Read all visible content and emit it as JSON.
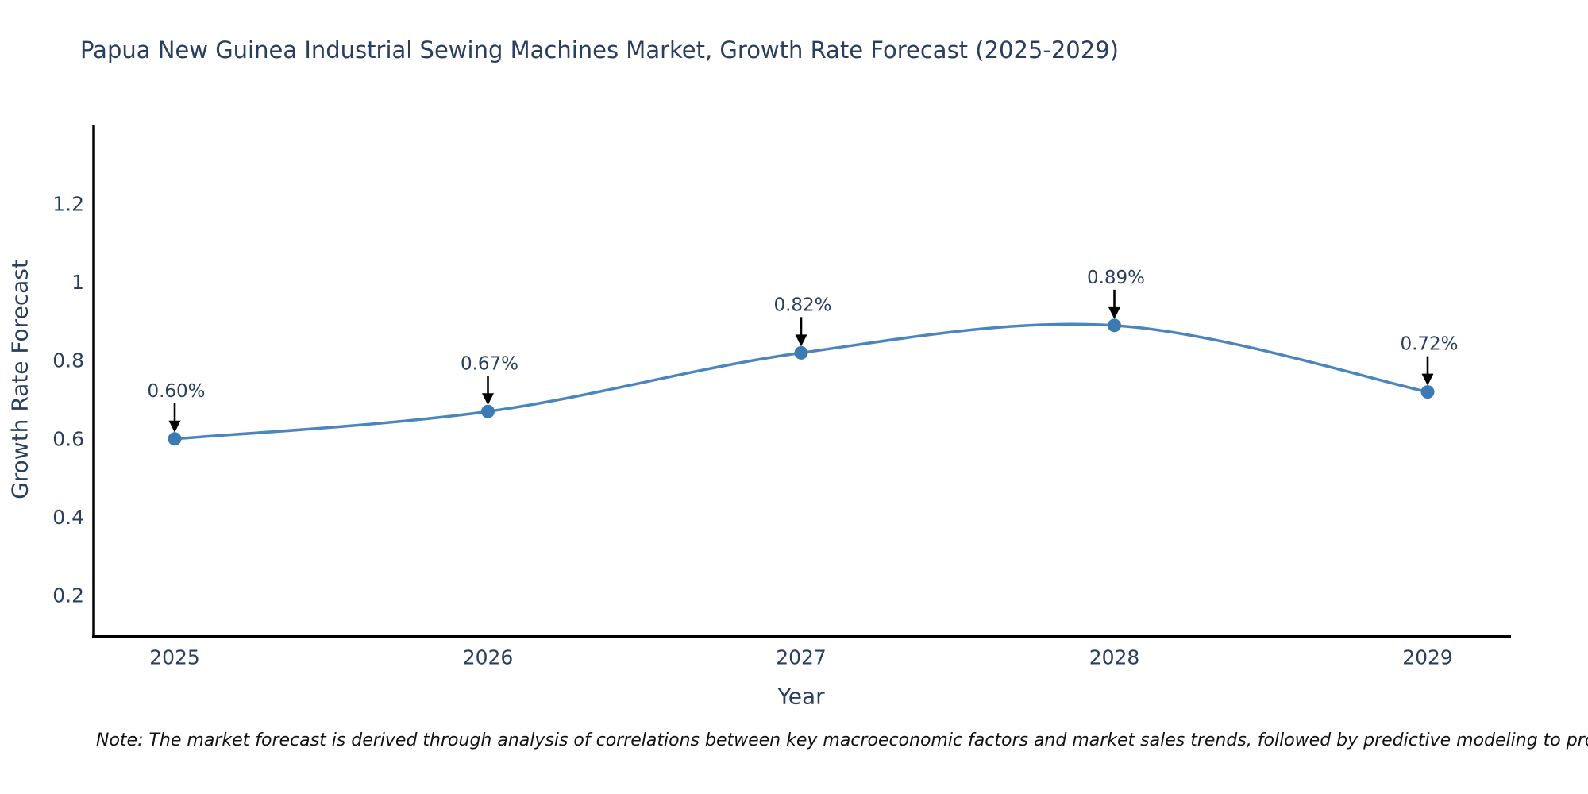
{
  "title": "Papua New Guinea Industrial Sewing Machines Market, Growth Rate Forecast (2025-2029)",
  "note": "Note: The market forecast is derived through analysis of correlations between key macroeconomic factors and market sales trends, followed by predictive modeling to project future sales",
  "chart_data": {
    "type": "line",
    "title": "Papua New Guinea Industrial Sewing Machines Market, Growth Rate Forecast (2025-2029)",
    "xlabel": "Year",
    "ylabel": "Growth Rate Forecast",
    "x": [
      2025,
      2026,
      2027,
      2028,
      2029
    ],
    "values": [
      0.6,
      0.67,
      0.82,
      0.89,
      0.72
    ],
    "point_labels": [
      "0.60%",
      "0.67%",
      "0.82%",
      "0.89%",
      "0.72%"
    ],
    "xticks": [
      {
        "value": 2025,
        "label": "2025"
      },
      {
        "value": 2026,
        "label": "2026"
      },
      {
        "value": 2027,
        "label": "2027"
      },
      {
        "value": 2028,
        "label": "2028"
      },
      {
        "value": 2029,
        "label": "2029"
      }
    ],
    "yticks": [
      {
        "value": 0.2,
        "label": "0.2"
      },
      {
        "value": 0.4,
        "label": "0.4"
      },
      {
        "value": 0.6,
        "label": "0.6"
      },
      {
        "value": 0.8,
        "label": "0.8"
      },
      {
        "value": 1.0,
        "label": "1"
      },
      {
        "value": 1.2,
        "label": "1.2"
      }
    ],
    "xlim": [
      2024.74,
      2029.26
    ],
    "ylim": [
      0.09,
      1.4
    ],
    "line_shape": "spline",
    "grid": false,
    "legend": "none",
    "colors": {
      "line": "#4a86bd",
      "marker": "#3d7ab3",
      "axis": "#000000",
      "text": "#2a3f5f",
      "annotation_text": "#2a3f5f",
      "annotation_arrow": "#000000",
      "note_text": "#111111",
      "background": "#ffffff"
    }
  }
}
